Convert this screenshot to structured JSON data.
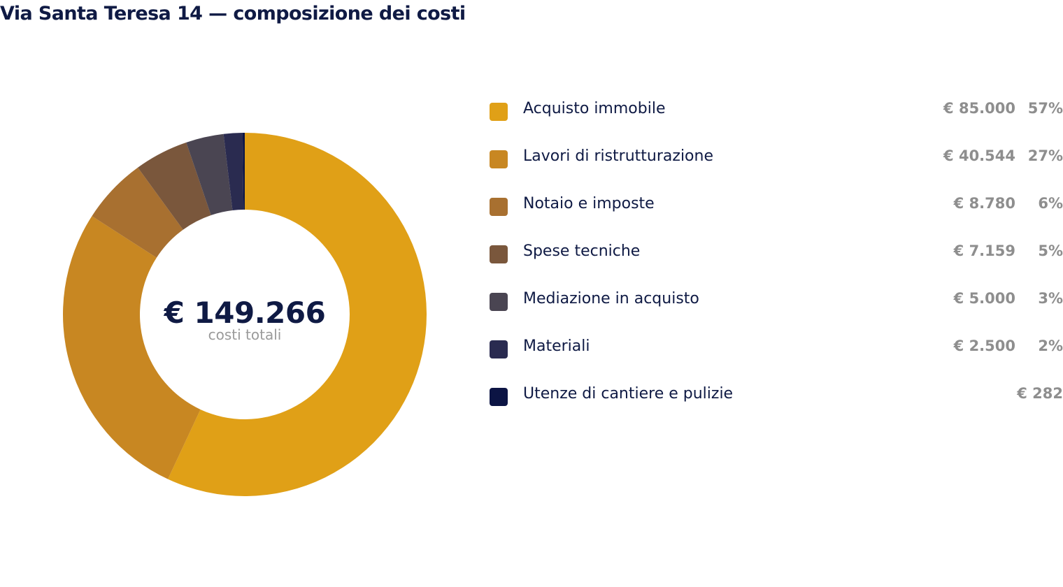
{
  "title": "Via Santa Teresa 14 — composizione dei costi",
  "center": {
    "value": "€ 149.266",
    "label": "costi totali"
  },
  "chart_data": {
    "type": "pie",
    "title": "Via Santa Teresa 14 — composizione dei costi",
    "total": 149266,
    "total_label": "€ 149.266",
    "categories": [
      "Acquisto immobile",
      "Lavori di ristrutturazione",
      "Notaio e imposte",
      "Spese tecniche",
      "Mediazione in acquisto",
      "Materiali",
      "Utenze di cantiere e pulizie"
    ],
    "values": [
      85000,
      40544,
      8780,
      7159,
      5000,
      2500,
      282
    ],
    "amount_labels": [
      "€ 85.000",
      "€ 40.544",
      "€ 8.780",
      "€ 7.159",
      "€ 5.000",
      "€ 2.500",
      "€ 282"
    ],
    "percent_labels": [
      "57%",
      "27%",
      "6%",
      "5%",
      "3%",
      "2%",
      ""
    ],
    "colors": [
      "#e0a017",
      "#c88722",
      "#a87030",
      "#7a573c",
      "#4a4552",
      "#2a2b50",
      "#0c1444"
    ],
    "legend_position": "right"
  }
}
